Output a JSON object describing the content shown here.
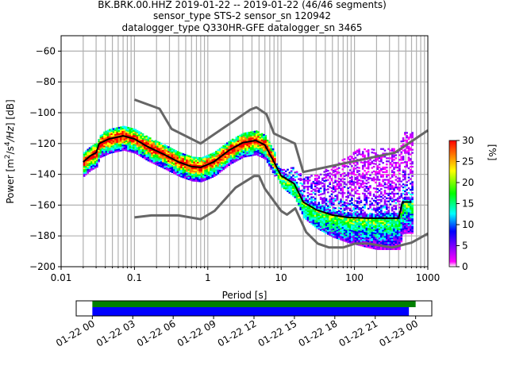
{
  "chart_data": {
    "type": "heatmap",
    "subtype": "probabilistic power spectral density (PPSD)",
    "title": [
      "BK.BRK.00.HHZ   2019-01-22 -- 2019-01-22  (46/46 segments)",
      "sensor_type STS-2 sensor_sn 120942",
      "datalogger_type Q330HR-GFE datalogger_sn 3465"
    ],
    "xlabel": "Period [s]",
    "ylabel": "Power [m²/s⁴/Hz] [dB]",
    "xscale": "log",
    "xlim": [
      0.01,
      1000
    ],
    "ylim": [
      -200,
      -50
    ],
    "x_ticks": [
      0.01,
      0.1,
      1,
      10,
      100,
      1000
    ],
    "x_tick_labels": [
      "0.01",
      "0.1",
      "1",
      "10",
      "100",
      "1000"
    ],
    "y_ticks": [
      -200,
      -180,
      -160,
      -140,
      -120,
      -100,
      -80,
      -60
    ],
    "y_tick_labels": [
      "−200",
      "−180",
      "−160",
      "−140",
      "−120",
      "−100",
      "−80",
      "−60"
    ],
    "grid": true,
    "colorbar": {
      "label": "[%]",
      "range": [
        0,
        30
      ],
      "ticks": [
        0,
        5,
        10,
        15,
        20,
        25,
        30
      ],
      "tick_labels": [
        "0",
        "5",
        "10",
        "15",
        "20",
        "25",
        "30"
      ],
      "colormap": [
        "#ffffff",
        "#ff00ff",
        "#8000ff",
        "#0000ff",
        "#00ffff",
        "#00ff00",
        "#ffff00",
        "#ff8000",
        "#ff0000"
      ]
    },
    "series": [
      {
        "name": "New High Noise Model",
        "color": "#666666",
        "points": [
          [
            0.1,
            -91.5
          ],
          [
            0.22,
            -97.4
          ],
          [
            0.32,
            -110.5
          ],
          [
            0.8,
            -120
          ],
          [
            3.8,
            -98
          ],
          [
            4.6,
            -96.5
          ],
          [
            6.3,
            -101
          ],
          [
            8,
            -113.5
          ],
          [
            15.4,
            -120
          ],
          [
            20,
            -138.5
          ],
          [
            354.8,
            -126
          ],
          [
            1000,
            -111.5
          ]
        ]
      },
      {
        "name": "New Low Noise Model",
        "color": "#666666",
        "points": [
          [
            0.1,
            -168
          ],
          [
            0.17,
            -166.7
          ],
          [
            0.4,
            -166.7
          ],
          [
            0.8,
            -169.2
          ],
          [
            1.24,
            -163.7
          ],
          [
            2.4,
            -148.6
          ],
          [
            4.3,
            -141.1
          ],
          [
            5,
            -141.1
          ],
          [
            6,
            -149.4
          ],
          [
            10,
            -163.8
          ],
          [
            12,
            -166.2
          ],
          [
            15.6,
            -162.1
          ],
          [
            21.9,
            -177.5
          ],
          [
            31.6,
            -185
          ],
          [
            45,
            -187.5
          ],
          [
            70,
            -187.5
          ],
          [
            101,
            -185
          ],
          [
            154,
            -185
          ],
          [
            328,
            -187.5
          ],
          [
            600,
            -184.4
          ],
          [
            1000,
            -178.5
          ]
        ]
      },
      {
        "name": "Mode",
        "color": "#000000",
        "points": [
          [
            0.02,
            -132
          ],
          [
            0.025,
            -128
          ],
          [
            0.03,
            -126
          ],
          [
            0.033,
            -120
          ],
          [
            0.045,
            -117
          ],
          [
            0.07,
            -115
          ],
          [
            0.1,
            -117
          ],
          [
            0.15,
            -122
          ],
          [
            0.25,
            -127
          ],
          [
            0.4,
            -132
          ],
          [
            0.6,
            -135
          ],
          [
            0.8,
            -135.5
          ],
          [
            1.2,
            -132
          ],
          [
            2,
            -124
          ],
          [
            3,
            -119.5
          ],
          [
            4.5,
            -118
          ],
          [
            6,
            -121
          ],
          [
            8,
            -132
          ],
          [
            10,
            -141
          ],
          [
            15,
            -146
          ],
          [
            20,
            -158
          ],
          [
            30,
            -163
          ],
          [
            50,
            -166.5
          ],
          [
            80,
            -168
          ],
          [
            150,
            -168.5
          ],
          [
            400,
            -168.5
          ],
          [
            450,
            -158
          ],
          [
            600,
            -158
          ]
        ]
      }
    ],
    "heatmap_extent": {
      "period_range": [
        0.02,
        600
      ],
      "note": "Probability density of PSD estimates; dense band along the mode, scattered low-probability (magenta) spread from ~8 s to ~600 s between about -125 and -180 dB"
    }
  },
  "timeline": {
    "tick_labels": [
      "01-22 00",
      "01-22 03",
      "01-22 06",
      "01-22 09",
      "01-22 12",
      "01-22 15",
      "01-22 18",
      "01-22 21",
      "01-23 00"
    ],
    "range_hours": [
      -1.2,
      25.2
    ],
    "bars": [
      {
        "name": "data-coverage",
        "color": "#008000",
        "start_hour": 0,
        "end_hour": 24
      },
      {
        "name": "ppsd-coverage",
        "color": "#0000ff",
        "start_hour": 0,
        "end_hour": 23.5
      }
    ]
  }
}
